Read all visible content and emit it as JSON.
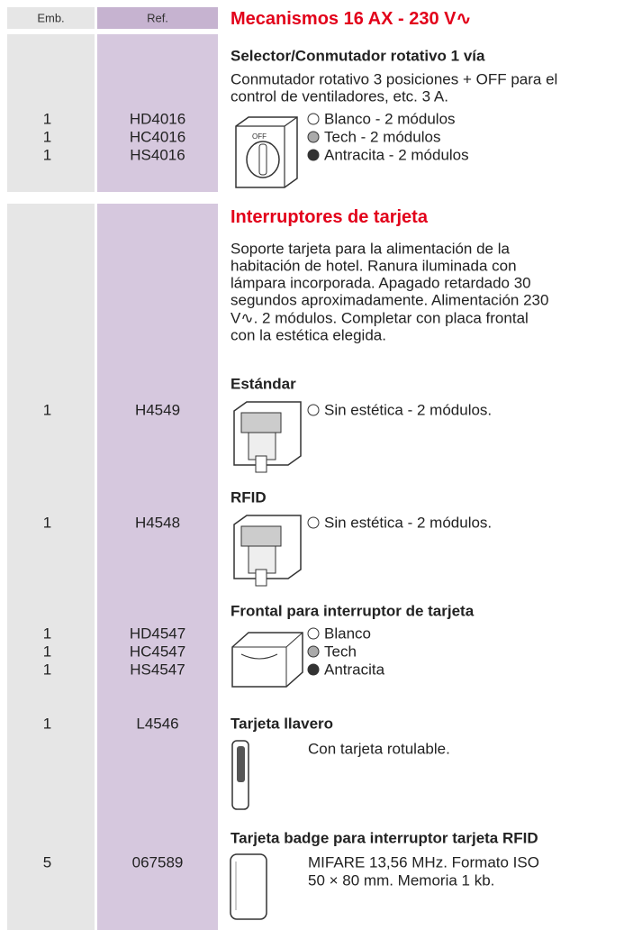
{
  "header": {
    "emb": "Emb.",
    "ref": "Ref."
  },
  "sections": [
    {
      "title": "Mecanismos 16 AX - 230 V∿",
      "groups": [
        {
          "heading": "Selector/Conmutador rotativo 1 vía",
          "description": [
            "Conmutador rotativo 3 posiciones + OFF para el",
            "control de ventiladores, etc. 3 A."
          ],
          "rows": [
            {
              "emb": 1,
              "ref": "HD4016",
              "label": "Blanco - 2 módulos"
            },
            {
              "emb": 1,
              "ref": "HC4016",
              "label": "Tech - 2 módulos"
            },
            {
              "emb": 1,
              "ref": "HS4016",
              "label": "Antracita - 2 módulos"
            }
          ]
        }
      ]
    },
    {
      "title": "Interruptores de tarjeta",
      "description": [
        "Soporte tarjeta para la alimentación de la",
        "habitación de hotel. Ranura iluminada con",
        "lámpara incorporada. Apagado retardado 30",
        "segundos aproximadamente. Alimentación 230",
        "V∿. 2 módulos. Completar con placa frontal",
        "con la estética elegida."
      ],
      "groups": [
        {
          "heading": "Estándar",
          "rows": [
            {
              "emb": 1,
              "ref": "H4549",
              "label": "Sin estética - 2 módulos."
            }
          ]
        },
        {
          "heading": "RFID",
          "rows": [
            {
              "emb": 1,
              "ref": "H4548",
              "label": "Sin estética - 2 módulos."
            }
          ]
        },
        {
          "heading": "Frontal para interruptor de tarjeta",
          "rows": [
            {
              "emb": 1,
              "ref": "HD4547",
              "label": "Blanco"
            },
            {
              "emb": 1,
              "ref": "HC4547",
              "label": "Tech"
            },
            {
              "emb": 1,
              "ref": "HS4547",
              "label": "Antracita"
            }
          ]
        },
        {
          "heading": "Tarjeta llavero",
          "rows": [
            {
              "emb": 1,
              "ref": "L4546"
            }
          ],
          "description": [
            "Con tarjeta rotulable."
          ]
        },
        {
          "heading": "Tarjeta badge para interruptor tarjeta RFID",
          "rows": [
            {
              "emb": 5,
              "ref": "067589"
            }
          ],
          "description": [
            "MIFARE 13,56 MHz. Formato ISO",
            "50 × 80 mm. Memoria 1 kb."
          ]
        }
      ]
    }
  ]
}
